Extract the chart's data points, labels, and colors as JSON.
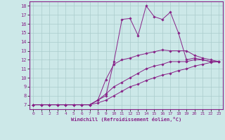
{
  "xlabel": "Windchill (Refroidissement éolien,°C)",
  "bg_color": "#cce8e8",
  "line_color": "#882288",
  "grid_color": "#aacccc",
  "xlim": [
    -0.5,
    23.5
  ],
  "ylim": [
    6.5,
    18.5
  ],
  "yticks": [
    7,
    8,
    9,
    10,
    11,
    12,
    13,
    14,
    15,
    16,
    17,
    18
  ],
  "xticks": [
    0,
    1,
    2,
    3,
    4,
    5,
    6,
    7,
    8,
    9,
    10,
    11,
    12,
    13,
    14,
    15,
    16,
    17,
    18,
    19,
    20,
    21,
    22,
    23
  ],
  "lines": [
    {
      "x": [
        0,
        1,
        2,
        3,
        4,
        5,
        6,
        7,
        8,
        9,
        10,
        11,
        12,
        13,
        14,
        15,
        16,
        17,
        18,
        19,
        20,
        21,
        22,
        23
      ],
      "y": [
        7,
        7,
        7,
        7,
        7,
        7,
        7,
        7,
        7.5,
        8,
        11.8,
        16.5,
        16.6,
        14.7,
        18,
        16.8,
        16.5,
        17.3,
        15,
        12,
        12.2,
        12,
        11.8,
        11.8
      ]
    },
    {
      "x": [
        0,
        1,
        2,
        3,
        4,
        5,
        6,
        7,
        8,
        9,
        10,
        11,
        12,
        13,
        14,
        15,
        16,
        17,
        18,
        19,
        20,
        21,
        22,
        23
      ],
      "y": [
        7,
        7,
        7,
        7,
        7,
        7,
        7,
        7,
        7.5,
        9.8,
        11.5,
        12.0,
        12.2,
        12.5,
        12.7,
        12.9,
        13.1,
        13.0,
        13.0,
        13.0,
        12.5,
        12.2,
        12.0,
        11.8
      ]
    },
    {
      "x": [
        0,
        1,
        2,
        3,
        4,
        5,
        6,
        7,
        8,
        9,
        10,
        11,
        12,
        13,
        14,
        15,
        16,
        17,
        18,
        19,
        20,
        21,
        22,
        23
      ],
      "y": [
        7,
        7,
        7,
        7,
        7,
        7,
        7,
        7,
        7.5,
        8.2,
        9.0,
        9.5,
        10.0,
        10.5,
        11.0,
        11.3,
        11.5,
        11.8,
        11.8,
        11.8,
        12.0,
        12.0,
        11.8,
        11.8
      ]
    },
    {
      "x": [
        0,
        1,
        2,
        3,
        4,
        5,
        6,
        7,
        8,
        9,
        10,
        11,
        12,
        13,
        14,
        15,
        16,
        17,
        18,
        19,
        20,
        21,
        22,
        23
      ],
      "y": [
        7,
        7,
        7,
        7,
        7,
        7,
        7,
        7,
        7.2,
        7.5,
        8.0,
        8.5,
        9.0,
        9.3,
        9.7,
        10.0,
        10.3,
        10.5,
        10.8,
        11.0,
        11.3,
        11.5,
        11.7,
        11.8
      ]
    }
  ]
}
